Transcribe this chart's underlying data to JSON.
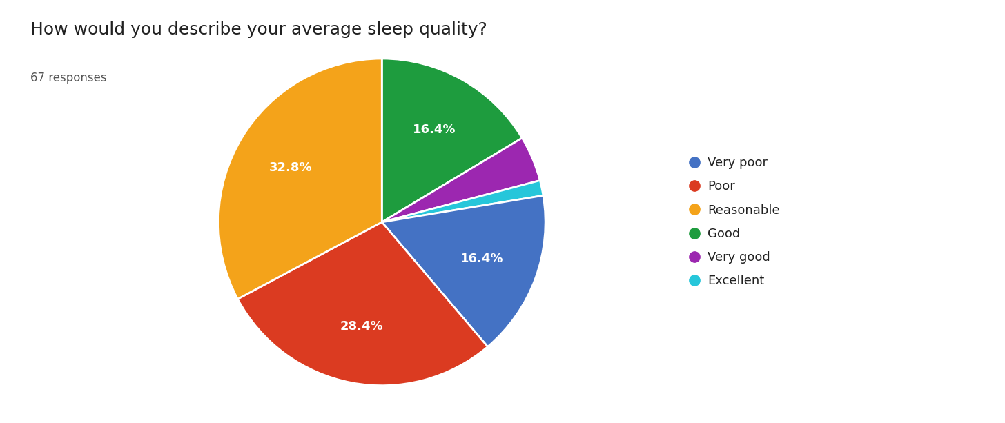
{
  "title": "How would you describe your average sleep quality?",
  "subtitle": "67 responses",
  "labels": [
    "Very poor",
    "Poor",
    "Reasonable",
    "Good",
    "Very good",
    "Excellent"
  ],
  "percentages": [
    16.4,
    28.4,
    32.8,
    16.4,
    4.5,
    1.5
  ],
  "colors": [
    "#4472c4",
    "#db3b21",
    "#f4a31a",
    "#1e9c3e",
    "#9c27b0",
    "#26c6da"
  ],
  "title_fontsize": 18,
  "subtitle_fontsize": 12,
  "label_fontsize": 13,
  "legend_fontsize": 13,
  "background_color": "#ffffff",
  "pie_order": [
    3,
    4,
    5,
    0,
    1,
    2
  ]
}
